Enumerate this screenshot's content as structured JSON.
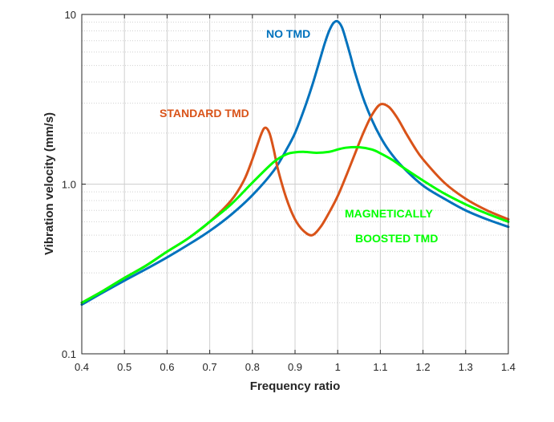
{
  "chart_data": {
    "type": "line",
    "xlabel": "Frequency ratio",
    "ylabel": "Vibration velocity (mm/s)",
    "xlim": [
      0.4,
      1.4
    ],
    "ylim": [
      0.1,
      10
    ],
    "yscale": "log",
    "grid": true,
    "x_ticks": [
      0.4,
      0.5,
      0.6,
      0.7,
      0.8,
      0.9,
      1,
      1.1,
      1.2,
      1.3,
      1.4
    ],
    "x_tick_labels": [
      "0.4",
      "0.5",
      "0.6",
      "0.7",
      "0.8",
      "0.9",
      "1",
      "1.1",
      "1.2",
      "1.3",
      "1.4"
    ],
    "y_ticks": [
      0.1,
      1.0,
      10
    ],
    "y_tick_labels": [
      "0.1",
      "1.0",
      "10"
    ],
    "series": [
      {
        "name": "NO TMD",
        "color": "#0072BD",
        "x": [
          0.4,
          0.45,
          0.5,
          0.55,
          0.6,
          0.65,
          0.7,
          0.75,
          0.8,
          0.85,
          0.88,
          0.9,
          0.92,
          0.94,
          0.96,
          0.97,
          0.98,
          0.99,
          1.0,
          1.01,
          1.02,
          1.03,
          1.04,
          1.06,
          1.08,
          1.1,
          1.12,
          1.15,
          1.2,
          1.25,
          1.3,
          1.35,
          1.4
        ],
        "y": [
          0.195,
          0.23,
          0.27,
          0.315,
          0.37,
          0.44,
          0.53,
          0.66,
          0.86,
          1.2,
          1.6,
          2.0,
          2.7,
          3.8,
          5.6,
          6.8,
          8.0,
          8.9,
          9.1,
          8.4,
          7.0,
          5.7,
          4.6,
          3.2,
          2.4,
          1.9,
          1.58,
          1.28,
          0.98,
          0.82,
          0.7,
          0.62,
          0.56
        ]
      },
      {
        "name": "STANDARD TMD",
        "color": "#D95319",
        "x": [
          0.4,
          0.45,
          0.5,
          0.55,
          0.6,
          0.65,
          0.7,
          0.75,
          0.78,
          0.8,
          0.82,
          0.83,
          0.84,
          0.85,
          0.86,
          0.88,
          0.9,
          0.92,
          0.94,
          0.96,
          0.98,
          1.0,
          1.02,
          1.04,
          1.06,
          1.08,
          1.1,
          1.12,
          1.14,
          1.16,
          1.18,
          1.2,
          1.25,
          1.3,
          1.35,
          1.4
        ],
        "y": [
          0.2,
          0.235,
          0.28,
          0.33,
          0.4,
          0.48,
          0.6,
          0.8,
          1.05,
          1.4,
          1.95,
          2.15,
          2.0,
          1.6,
          1.22,
          0.82,
          0.62,
          0.53,
          0.5,
          0.56,
          0.68,
          0.85,
          1.12,
          1.5,
          2.0,
          2.55,
          2.95,
          2.85,
          2.45,
          2.0,
          1.65,
          1.4,
          1.02,
          0.82,
          0.7,
          0.62
        ]
      },
      {
        "name": "MAGNETICALLY BOOSTED TMD",
        "color": "#00FF00",
        "x": [
          0.4,
          0.45,
          0.5,
          0.55,
          0.6,
          0.65,
          0.7,
          0.75,
          0.8,
          0.85,
          0.88,
          0.9,
          0.92,
          0.95,
          0.98,
          1.0,
          1.02,
          1.05,
          1.08,
          1.1,
          1.13,
          1.15,
          1.2,
          1.25,
          1.3,
          1.35,
          1.4
        ],
        "y": [
          0.2,
          0.235,
          0.28,
          0.33,
          0.4,
          0.48,
          0.6,
          0.76,
          1.02,
          1.35,
          1.5,
          1.54,
          1.55,
          1.53,
          1.55,
          1.6,
          1.64,
          1.65,
          1.6,
          1.52,
          1.38,
          1.27,
          1.05,
          0.88,
          0.76,
          0.67,
          0.6
        ]
      }
    ],
    "annotations": [
      {
        "text": "NO TMD",
        "color": "#0072BD"
      },
      {
        "text": "STANDARD TMD",
        "color": "#D95319"
      },
      {
        "text": "MAGNETICALLY",
        "color": "#00FF00"
      },
      {
        "text": "BOOSTED TMD",
        "color": "#00FF00"
      }
    ]
  }
}
